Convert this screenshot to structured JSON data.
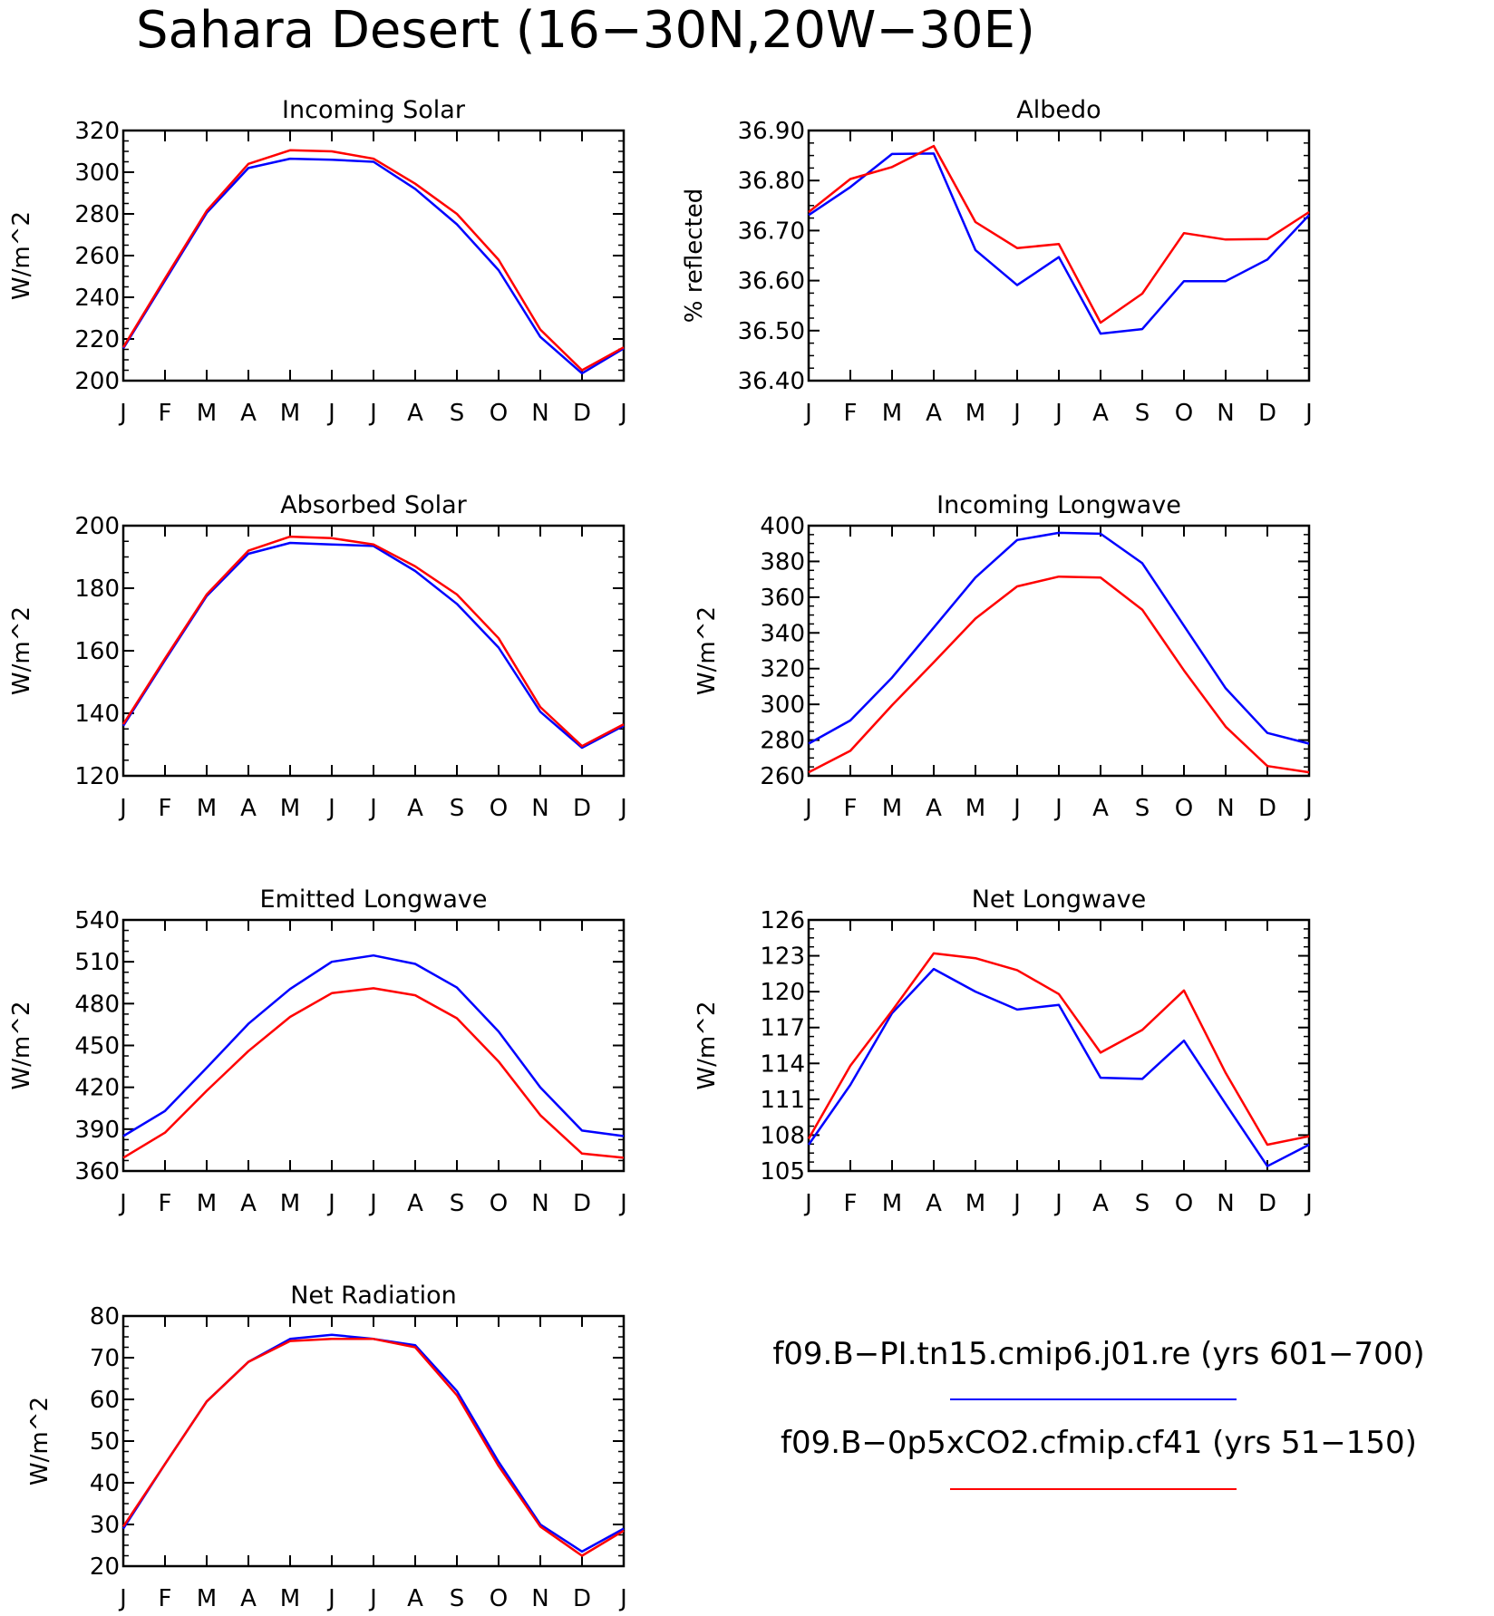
{
  "figure": {
    "title": "Sahara Desert (16−30N,20W−30E)"
  },
  "legend": {
    "entries": [
      {
        "label": "f09.B−PI.tn15.cmip6.j01.re (yrs 601−700)",
        "color": "#0000ff"
      },
      {
        "label": "f09.B−0p5xCO2.cfmip.cf41 (yrs 51−150)",
        "color": "#ff0000"
      }
    ]
  },
  "chart_data": [
    {
      "type": "line",
      "title": "Incoming Solar",
      "ylabel": "W/m^2",
      "xlabel": "",
      "categories": [
        "J",
        "F",
        "M",
        "A",
        "M",
        "J",
        "J",
        "A",
        "S",
        "O",
        "N",
        "D",
        "J"
      ],
      "ylim": [
        200,
        320
      ],
      "yticks": [
        "200",
        "220",
        "240",
        "260",
        "280",
        "300",
        "320"
      ],
      "grid": false,
      "series": [
        {
          "color": "#0000ff",
          "values": [
            215.5,
            248,
            280.5,
            302,
            306.5,
            306,
            305,
            292,
            275,
            253,
            221,
            203.5,
            215.5
          ]
        },
        {
          "color": "#ff0000",
          "values": [
            216,
            249,
            281.5,
            304,
            310.5,
            310,
            306.5,
            294.5,
            280,
            258,
            224.5,
            205,
            216
          ]
        }
      ]
    },
    {
      "type": "line",
      "title": "Albedo",
      "ylabel": "% reflected",
      "xlabel": "",
      "categories": [
        "J",
        "F",
        "M",
        "A",
        "M",
        "J",
        "J",
        "A",
        "S",
        "O",
        "N",
        "D",
        "J"
      ],
      "ylim": [
        36.4,
        36.9
      ],
      "yticks": [
        "36.40",
        "36.50",
        "36.60",
        "36.70",
        "36.80",
        "36.90"
      ],
      "grid": false,
      "series": [
        {
          "color": "#0000ff",
          "values": [
            36.731,
            36.787,
            36.853,
            36.854,
            36.661,
            36.591,
            36.647,
            36.494,
            36.503,
            36.599,
            36.599,
            36.642,
            36.731
          ]
        },
        {
          "color": "#ff0000",
          "values": [
            36.737,
            36.803,
            36.827,
            36.869,
            36.717,
            36.665,
            36.673,
            36.516,
            36.574,
            36.695,
            36.682,
            36.683,
            36.737
          ]
        }
      ]
    },
    {
      "type": "line",
      "title": "Absorbed Solar",
      "ylabel": "W/m^2",
      "xlabel": "",
      "categories": [
        "J",
        "F",
        "M",
        "A",
        "M",
        "J",
        "J",
        "A",
        "S",
        "O",
        "N",
        "D",
        "J"
      ],
      "ylim": [
        120,
        200
      ],
      "yticks": [
        "120",
        "140",
        "160",
        "180",
        "200"
      ],
      "grid": false,
      "series": [
        {
          "color": "#0000ff",
          "values": [
            136,
            157,
            177.5,
            191,
            194.5,
            194,
            193.5,
            185.5,
            175,
            161,
            140.5,
            129,
            136
          ]
        },
        {
          "color": "#ff0000",
          "values": [
            136.5,
            157.5,
            178,
            192,
            196.5,
            196,
            194,
            187,
            178,
            164,
            142,
            129.5,
            136.5
          ]
        }
      ]
    },
    {
      "type": "line",
      "title": "Incoming Longwave",
      "ylabel": "W/m^2",
      "xlabel": "",
      "categories": [
        "J",
        "F",
        "M",
        "A",
        "M",
        "J",
        "J",
        "A",
        "S",
        "O",
        "N",
        "D",
        "J"
      ],
      "ylim": [
        260,
        400
      ],
      "yticks": [
        "260",
        "280",
        "300",
        "320",
        "340",
        "360",
        "380",
        "400"
      ],
      "grid": false,
      "series": [
        {
          "color": "#0000ff",
          "values": [
            278,
            291,
            315,
            343,
            371,
            392,
            396,
            395.5,
            379,
            344,
            309,
            284,
            278
          ]
        },
        {
          "color": "#ff0000",
          "values": [
            262,
            274,
            299.5,
            323.5,
            348,
            366,
            371.5,
            371,
            353,
            319,
            287.5,
            265.5,
            262
          ]
        }
      ]
    },
    {
      "type": "line",
      "title": "Emitted Longwave",
      "ylabel": "W/m^2",
      "xlabel": "",
      "categories": [
        "J",
        "F",
        "M",
        "A",
        "M",
        "J",
        "J",
        "A",
        "S",
        "O",
        "N",
        "D",
        "J"
      ],
      "ylim": [
        360,
        540
      ],
      "yticks": [
        "360",
        "390",
        "420",
        "450",
        "480",
        "510",
        "540"
      ],
      "grid": false,
      "series": [
        {
          "color": "#0000ff",
          "values": [
            385,
            403,
            434,
            465.5,
            490.5,
            510,
            514.5,
            508.5,
            491.5,
            460,
            420,
            389,
            385
          ]
        },
        {
          "color": "#ff0000",
          "values": [
            369.5,
            387.5,
            417.5,
            446,
            470.5,
            487.5,
            491,
            486,
            469.5,
            438.5,
            400,
            372.5,
            369.5
          ]
        }
      ]
    },
    {
      "type": "line",
      "title": "Net Longwave",
      "ylabel": "W/m^2",
      "xlabel": "",
      "categories": [
        "J",
        "F",
        "M",
        "A",
        "M",
        "J",
        "J",
        "A",
        "S",
        "O",
        "N",
        "D",
        "J"
      ],
      "ylim": [
        105,
        126
      ],
      "yticks": [
        "105",
        "108",
        "111",
        "114",
        "117",
        "120",
        "123",
        "126"
      ],
      "grid": false,
      "series": [
        {
          "color": "#0000ff",
          "values": [
            107.2,
            112.2,
            118.2,
            121.9,
            120.0,
            118.5,
            118.9,
            112.8,
            112.7,
            115.9,
            110.6,
            105.4,
            107.2
          ]
        },
        {
          "color": "#ff0000",
          "values": [
            107.7,
            113.8,
            118.4,
            123.2,
            122.8,
            121.8,
            119.8,
            114.9,
            116.8,
            120.1,
            113.2,
            107.2,
            107.9
          ]
        }
      ]
    },
    {
      "type": "line",
      "title": "Net Radiation",
      "ylabel": "W/m^2",
      "xlabel": "",
      "categories": [
        "J",
        "F",
        "M",
        "A",
        "M",
        "J",
        "J",
        "A",
        "S",
        "O",
        "N",
        "D",
        "J"
      ],
      "ylim": [
        20,
        80
      ],
      "yticks": [
        "20",
        "30",
        "40",
        "50",
        "60",
        "70",
        "80"
      ],
      "grid": false,
      "series": [
        {
          "color": "#0000ff",
          "values": [
            29,
            44.5,
            59.5,
            69,
            74.5,
            75.5,
            74.5,
            73,
            62,
            45,
            30,
            23.5,
            29
          ]
        },
        {
          "color": "#ff0000",
          "values": [
            29.5,
            44.5,
            59.5,
            69,
            74,
            74.5,
            74.5,
            72.5,
            61,
            44,
            29.5,
            22.5,
            28.5
          ]
        }
      ]
    }
  ]
}
